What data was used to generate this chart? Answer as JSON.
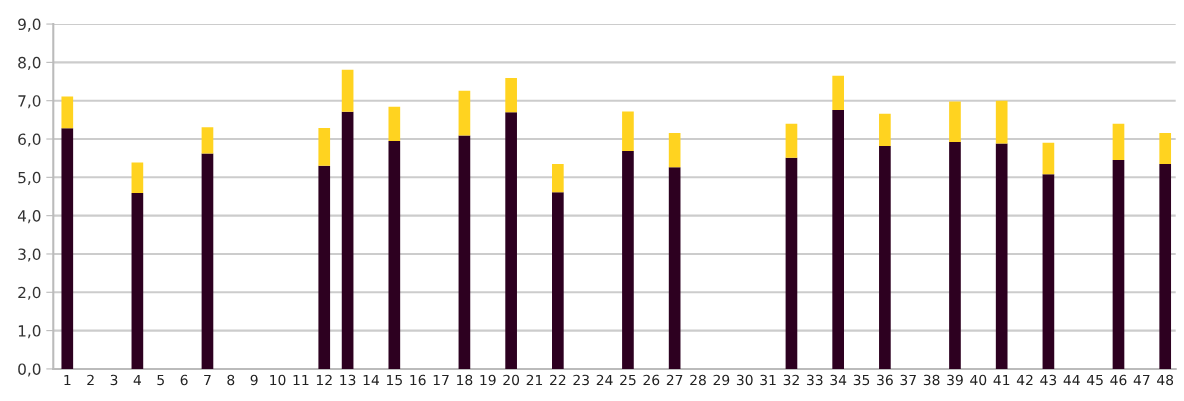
{
  "chart_data": {
    "type": "bar",
    "stacked": true,
    "grid": "y",
    "categories": [
      "1",
      "2",
      "3",
      "4",
      "5",
      "6",
      "7",
      "8",
      "9",
      "10",
      "11",
      "12",
      "13",
      "14",
      "15",
      "16",
      "17",
      "18",
      "19",
      "20",
      "21",
      "22",
      "23",
      "24",
      "25",
      "26",
      "27",
      "28",
      "29",
      "30",
      "31",
      "32",
      "33",
      "34",
      "35",
      "36",
      "37",
      "38",
      "39",
      "40",
      "41",
      "42",
      "43",
      "44",
      "45",
      "46",
      "47",
      "48"
    ],
    "series": [
      {
        "color": "#2d0020",
        "values": [
          6.28,
          null,
          null,
          4.59,
          null,
          null,
          5.62,
          null,
          null,
          null,
          null,
          5.3,
          6.71,
          null,
          5.95,
          null,
          null,
          6.09,
          null,
          6.7,
          null,
          4.61,
          null,
          null,
          5.69,
          null,
          5.26,
          null,
          null,
          null,
          null,
          5.51,
          null,
          6.76,
          null,
          5.82,
          null,
          null,
          5.92,
          null,
          5.88,
          null,
          5.08,
          null,
          null,
          5.45,
          null,
          5.35
        ]
      },
      {
        "color": "#ffd320",
        "values": [
          0.83,
          null,
          null,
          0.8,
          null,
          null,
          0.69,
          null,
          null,
          null,
          null,
          0.99,
          1.1,
          null,
          0.89,
          null,
          null,
          1.17,
          null,
          0.89,
          null,
          0.74,
          null,
          null,
          1.03,
          null,
          0.9,
          null,
          null,
          null,
          null,
          0.89,
          null,
          0.89,
          null,
          0.84,
          null,
          null,
          1.06,
          null,
          1.12,
          null,
          0.82,
          null,
          null,
          0.95,
          null,
          0.81
        ]
      }
    ],
    "ylim": [
      0,
      9
    ],
    "yticks": [
      {
        "value": 0,
        "label": "0,0"
      },
      {
        "value": 1,
        "label": "1,0"
      },
      {
        "value": 2,
        "label": "2,0"
      },
      {
        "value": 3,
        "label": "3,0"
      },
      {
        "value": 4,
        "label": "4,0"
      },
      {
        "value": 5,
        "label": "5,0"
      },
      {
        "value": 6,
        "label": "6,0"
      },
      {
        "value": 7,
        "label": "7,0"
      },
      {
        "value": 8,
        "label": "8,0"
      },
      {
        "value": 9,
        "label": "9,0"
      }
    ]
  }
}
